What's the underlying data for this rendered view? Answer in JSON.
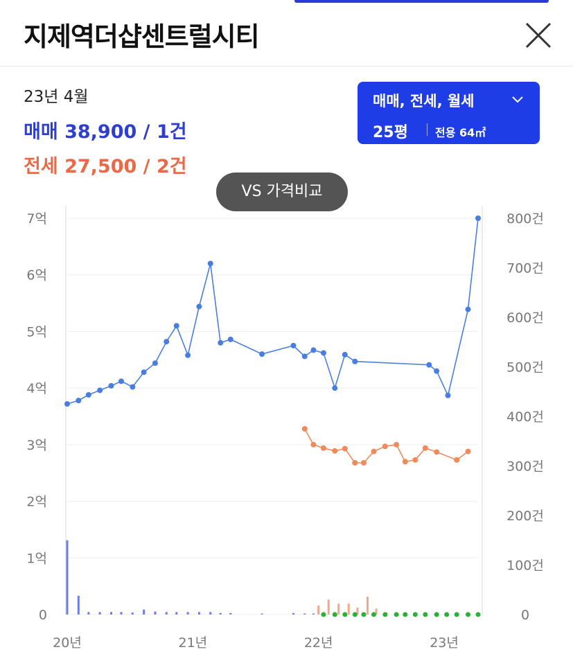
{
  "header": {
    "title": "지제역더샵센트럴시티"
  },
  "info": {
    "date": "23년 4월",
    "sale_label": "매매",
    "sale_value": "38,900 / 1건",
    "jeonse_label": "전세",
    "jeonse_value": "27,500 / 2건"
  },
  "filter": {
    "types": "매매, 전세, 월세",
    "size": "25평",
    "area": "전용 64㎡"
  },
  "vs_button": {
    "label": "VS 가격비교"
  },
  "colors": {
    "sale": "#4a7ede",
    "jeonse": "#ee8a5c",
    "accent": "#1f3de6",
    "volume_sale": "#6a7fe0",
    "volume_jeonse": "#f0a88a",
    "volume_green": "#2fae3a"
  },
  "chart_data": {
    "type": "line",
    "x_tick_labels": [
      "20년",
      "21년",
      "22년",
      "23년"
    ],
    "x_tick_values": [
      2020.0,
      2021.0,
      2022.0,
      2023.0
    ],
    "xlim": [
      2020.0,
      2023.27
    ],
    "y_left_ticks": [
      "0",
      "1억",
      "2억",
      "3억",
      "4억",
      "5억",
      "6억",
      "7억"
    ],
    "ylim_left": [
      0,
      7
    ],
    "y_right_ticks": [
      "0",
      "100건",
      "200건",
      "300건",
      "400건",
      "500건",
      "600건",
      "700건",
      "800건"
    ],
    "ylim_right": [
      0,
      800
    ],
    "series": [
      {
        "key": "sale",
        "color": "#4a7ede",
        "x": [
          2020.0,
          2020.09,
          2020.17,
          2020.26,
          2020.35,
          2020.43,
          2020.52,
          2020.61,
          2020.7,
          2020.79,
          2020.87,
          2020.96,
          2021.05,
          2021.14,
          2021.22,
          2021.3,
          2021.55,
          2021.8,
          2021.89,
          2021.96,
          2022.04,
          2022.13,
          2022.21,
          2022.29,
          2022.88,
          2022.94,
          2023.03,
          2023.19,
          2023.27
        ],
        "values": [
          3.72,
          3.78,
          3.88,
          3.96,
          4.04,
          4.12,
          4.02,
          4.28,
          4.44,
          4.82,
          5.1,
          4.58,
          5.44,
          6.2,
          4.8,
          4.86,
          4.6,
          4.75,
          4.56,
          4.67,
          4.62,
          4.0,
          4.59,
          4.47,
          4.41,
          4.3,
          3.87,
          5.39,
          7.0
        ]
      },
      {
        "key": "jeonse",
        "color": "#ee8a5c",
        "x": [
          2021.89,
          2021.96,
          2022.04,
          2022.13,
          2022.21,
          2022.29,
          2022.36,
          2022.44,
          2022.53,
          2022.62,
          2022.69,
          2022.77,
          2022.85,
          2022.94,
          2023.1,
          2023.19
        ],
        "values": [
          3.28,
          3.0,
          2.94,
          2.89,
          2.93,
          2.68,
          2.68,
          2.88,
          2.97,
          3.0,
          2.7,
          2.73,
          2.94,
          2.87,
          2.73,
          2.88
        ]
      }
    ],
    "volume_series": [
      {
        "key": "sale_volume",
        "color": "#6a7fe0",
        "x": [
          2020.0,
          2020.09,
          2020.17,
          2020.26,
          2020.35,
          2020.43,
          2020.52,
          2020.61,
          2020.7,
          2020.79,
          2020.87,
          2020.96,
          2021.05,
          2021.14,
          2021.22,
          2021.3,
          2021.55,
          2021.8,
          2021.89,
          2021.96
        ],
        "values": [
          150,
          38,
          5,
          5,
          5,
          5,
          4,
          10,
          6,
          5,
          5,
          5,
          5,
          5,
          3,
          3,
          2,
          3,
          2,
          2
        ]
      },
      {
        "key": "jeonse_volume",
        "color": "#f0a88a",
        "x": [
          2022.0,
          2022.08,
          2022.16,
          2022.24,
          2022.31,
          2022.39,
          2022.46,
          2022.54
        ],
        "values": [
          18,
          30,
          22,
          22,
          14,
          36,
          12,
          4
        ]
      },
      {
        "key": "other_volume",
        "color": "#2fae3a",
        "x": [
          2022.04,
          2022.13,
          2022.21,
          2022.29,
          2022.36,
          2022.44,
          2022.53,
          2022.62,
          2022.69,
          2022.77,
          2022.85,
          2022.94,
          2023.02,
          2023.1,
          2023.19,
          2023.27
        ],
        "values": [
          2,
          2,
          2,
          2,
          2,
          2,
          2,
          1,
          1,
          2,
          2,
          2,
          1,
          1,
          1,
          2
        ]
      }
    ]
  }
}
